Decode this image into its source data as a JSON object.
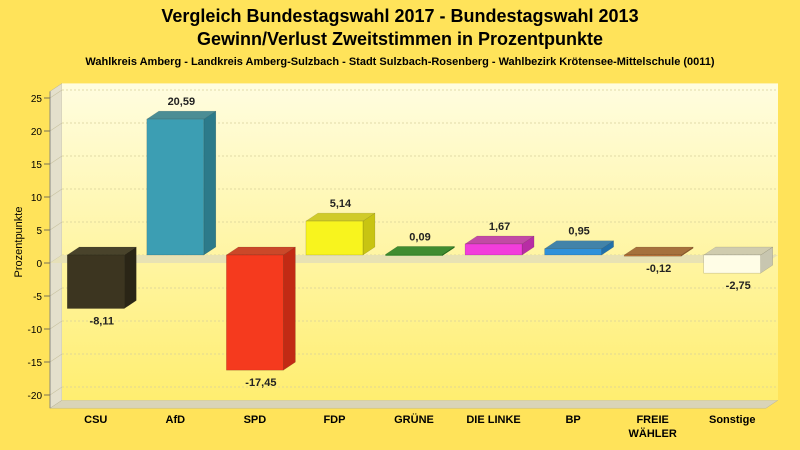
{
  "chart_data": {
    "type": "bar",
    "title": "Vergleich Bundestagswahl 2017 - Bundestagswahl 2013",
    "title_line2": "Gewinn/Verlust Zweitstimmen in Prozentpunkte",
    "subtitle": "Wahlkreis Amberg - Landkreis Amberg-Sulzbach - Stadt Sulzbach-Rosenberg - Wahlbezirk Krötensee-Mittelschule (0011)",
    "ylabel": "Prozentpunkte",
    "xlabel": "",
    "ylim": [
      -22,
      26
    ],
    "yticks": [
      25,
      20,
      15,
      10,
      5,
      0,
      -5,
      -10,
      -15,
      -20
    ],
    "grid": true,
    "categories": [
      "CSU",
      "AfD",
      "SPD",
      "FDP",
      "GRÜNE",
      "DIE LINKE",
      "BP",
      "FREIE WÄHLER",
      "Sonstige"
    ],
    "category_lines": [
      [
        "CSU"
      ],
      [
        "AfD"
      ],
      [
        "SPD"
      ],
      [
        "FDP"
      ],
      [
        "GRÜNE"
      ],
      [
        "DIE LINKE"
      ],
      [
        "BP"
      ],
      [
        "FREIE",
        "WÄHLER"
      ],
      [
        "Sonstige"
      ]
    ],
    "values": [
      -8.11,
      20.59,
      -17.45,
      5.14,
      0.09,
      1.67,
      0.95,
      -0.12,
      -2.75
    ],
    "value_labels": [
      "-8,11",
      "20,59",
      "-17,45",
      "5,14",
      "0,09",
      "1,67",
      "0,95",
      "-0,12",
      "-2,75"
    ],
    "colors": [
      "#3C3520",
      "#3C9EB3",
      "#F53A1E",
      "#F8F41E",
      "#2D9E28",
      "#F23DDB",
      "#2E90DA",
      "#C4773A",
      "#FFFDE6"
    ],
    "colors_dark": [
      "#2A2516",
      "#2C7A8A",
      "#C22A14",
      "#C8C412",
      "#1F7A1C",
      "#B82DA5",
      "#2270AA",
      "#975A2A",
      "#C8C6B0"
    ]
  }
}
